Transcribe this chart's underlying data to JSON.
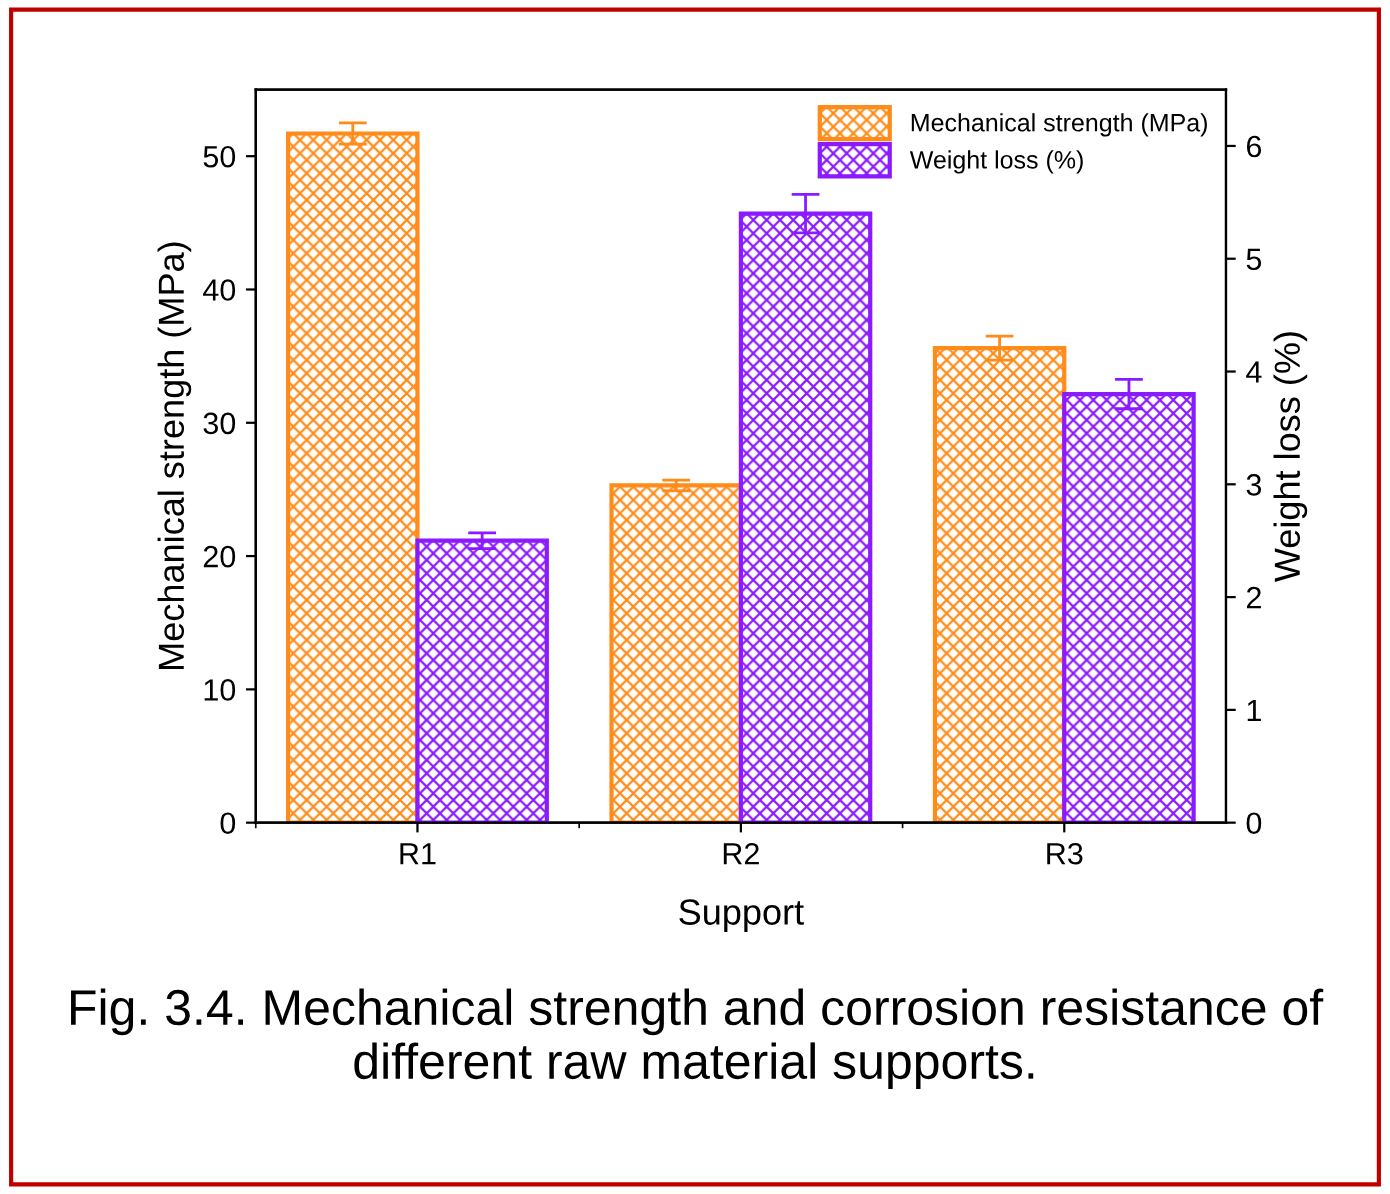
{
  "chart_data": {
    "type": "bar",
    "categories": [
      "R1",
      "R2",
      "R3"
    ],
    "xlabel": "Support",
    "ylabel": "Mechanical strength (MPa)",
    "y2label": "Weight loss (%)",
    "series": [
      {
        "name": "Mechanical strength (MPa)",
        "color": "#ff8c1a",
        "values": [
          51.7,
          25.3,
          35.6
        ],
        "errors": [
          0.8,
          0.4,
          0.9
        ]
      },
      {
        "name": "Weight loss (%)",
        "color": "#8a1aff",
        "axis": "y2",
        "values": [
          2.5,
          5.4,
          3.8
        ],
        "errors": [
          0.07,
          0.17,
          0.13
        ]
      }
    ],
    "ylim": [
      0,
      55
    ],
    "yticks": [
      0,
      10,
      20,
      30,
      40,
      50
    ],
    "y2lim": [
      0,
      6.5
    ],
    "y2ticks": [
      0,
      1,
      2,
      3,
      4,
      5,
      6
    ],
    "legend": "top right",
    "grid": false,
    "annotations": [
      "Fig. 3.4. Mechanical strength and corrosion resistance of different raw material supports."
    ]
  }
}
